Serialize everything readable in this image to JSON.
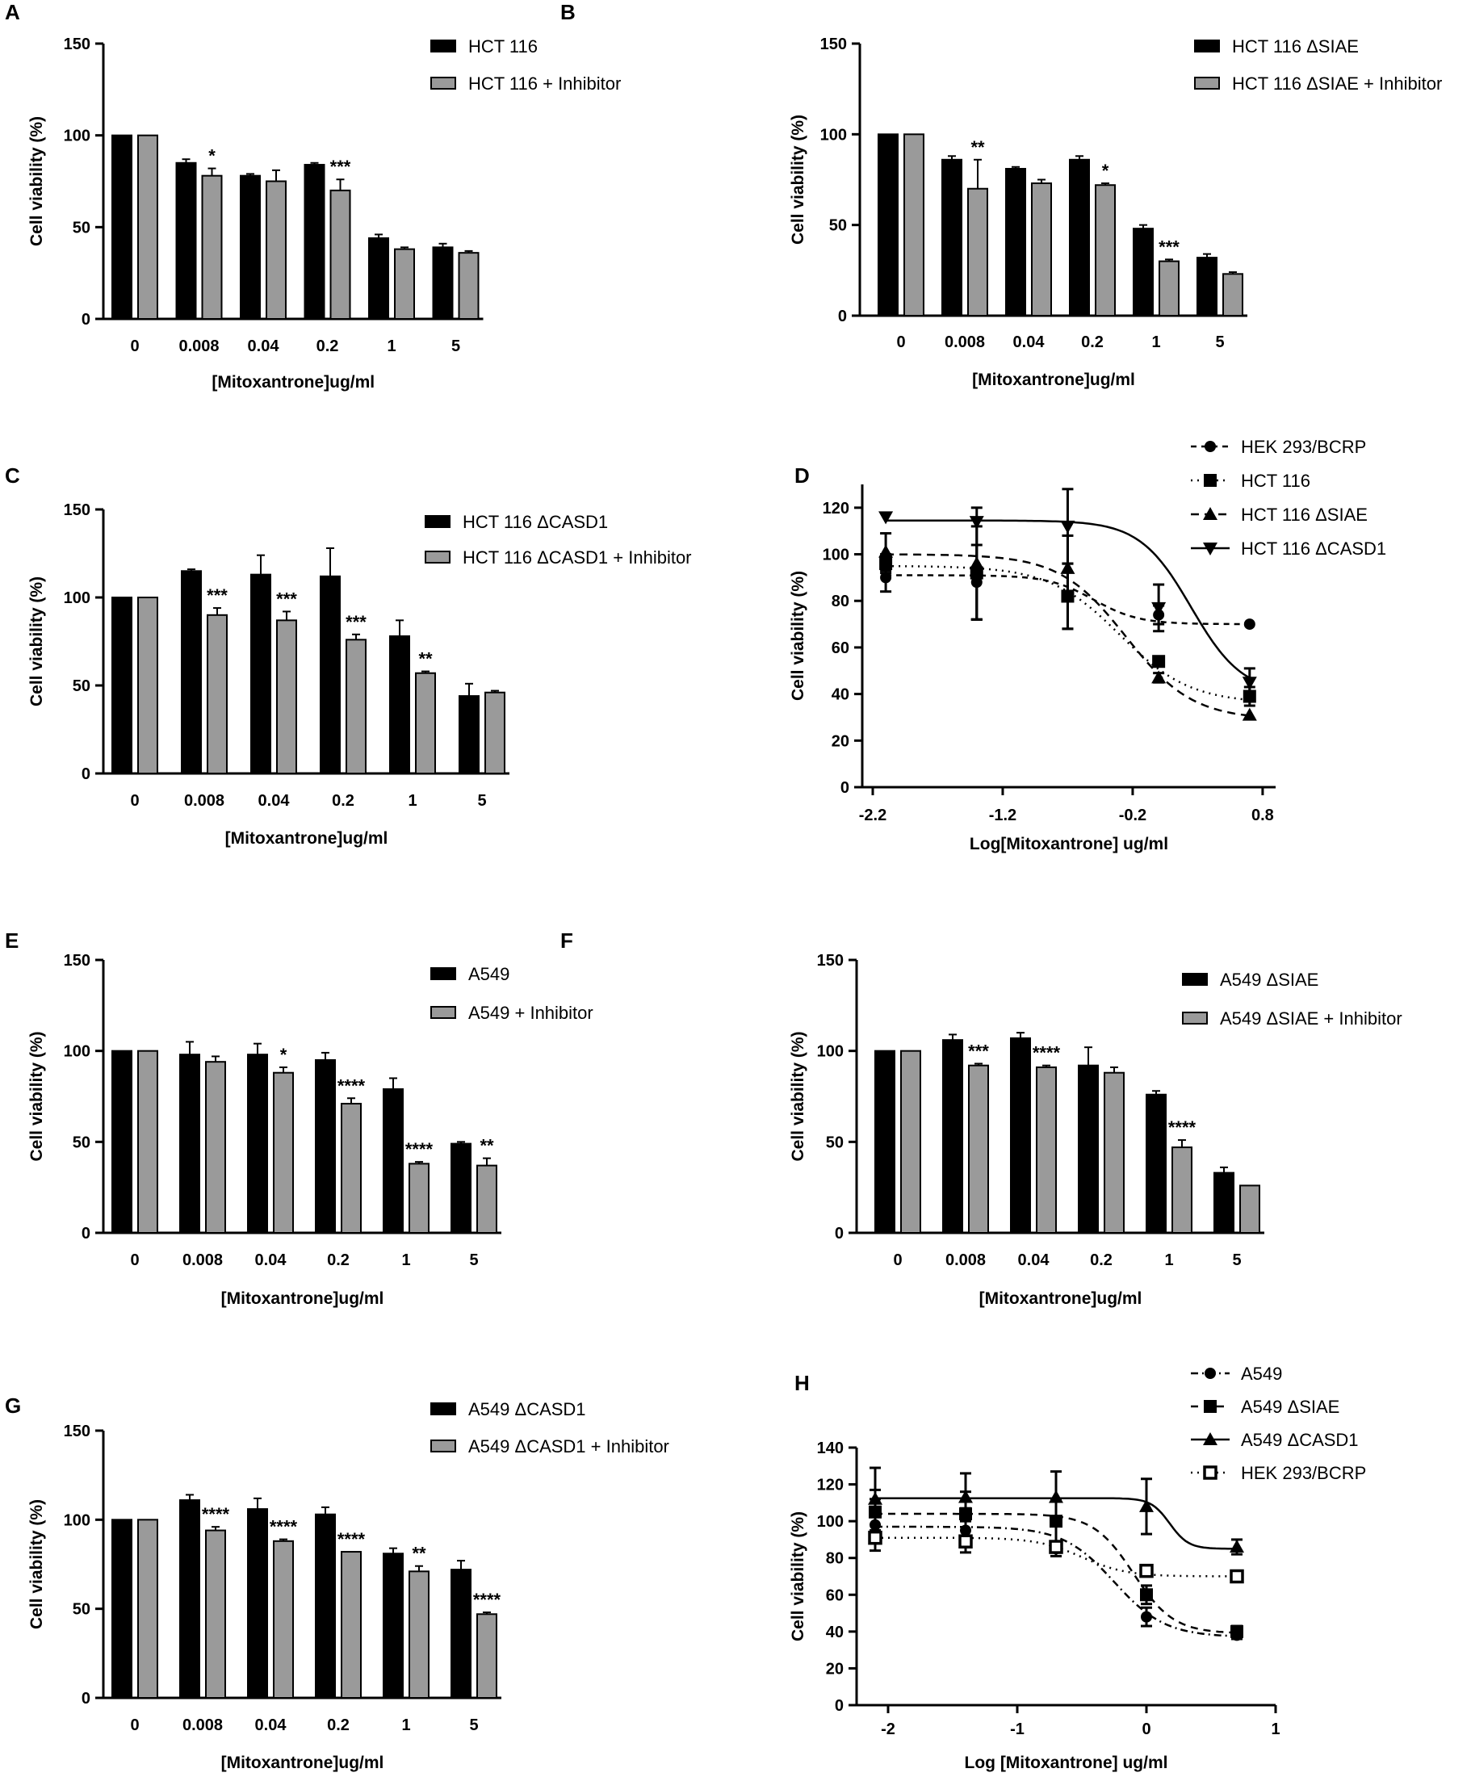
{
  "figure": {
    "background": "#ffffff"
  },
  "colors": {
    "black_bar": "#000000",
    "gray_bar": "#9a9a9a",
    "axis": "#000000"
  },
  "chart_data": [
    {
      "id": "A",
      "label": "A",
      "type": "bar",
      "categories": [
        "0",
        "0.008",
        "0.04",
        "0.2",
        "1",
        "5"
      ],
      "xlabel": "[Mitoxantrone]ug/ml",
      "ylabel": "Cell viability (%)",
      "ylim": [
        0,
        150
      ],
      "yticks": [
        0,
        50,
        100,
        150
      ],
      "series": [
        {
          "name": "HCT 116",
          "color": "#000000",
          "values": [
            100,
            85,
            78,
            84,
            44,
            39
          ],
          "errors": [
            0,
            2,
            1,
            1,
            2,
            2
          ]
        },
        {
          "name": "HCT 116 + Inhibitor",
          "color": "#9a9a9a",
          "values": [
            100,
            78,
            75,
            70,
            38,
            36
          ],
          "errors": [
            0,
            4,
            6,
            6,
            1,
            1
          ]
        }
      ],
      "significance": [
        "",
        "*",
        "",
        "***",
        "",
        ""
      ]
    },
    {
      "id": "B",
      "label": "B",
      "type": "bar",
      "categories": [
        "0",
        "0.008",
        "0.04",
        "0.2",
        "1",
        "5"
      ],
      "xlabel": "[Mitoxantrone]ug/ml",
      "ylabel": "Cell viability (%)",
      "ylim": [
        0,
        150
      ],
      "yticks": [
        0,
        50,
        100,
        150
      ],
      "series": [
        {
          "name": "HCT 116 ΔSIAE",
          "color": "#000000",
          "values": [
            100,
            86,
            81,
            86,
            48,
            32
          ],
          "errors": [
            0,
            2,
            1,
            2,
            2,
            2
          ]
        },
        {
          "name": "HCT 116 ΔSIAE + Inhibitor",
          "color": "#9a9a9a",
          "values": [
            100,
            70,
            73,
            72,
            30,
            23
          ],
          "errors": [
            0,
            16,
            2,
            1,
            1,
            1
          ]
        }
      ],
      "significance": [
        "",
        "**",
        "",
        "*",
        "***",
        ""
      ]
    },
    {
      "id": "C",
      "label": "C",
      "type": "bar",
      "categories": [
        "0",
        "0.008",
        "0.04",
        "0.2",
        "1",
        "5"
      ],
      "xlabel": "[Mitoxantrone]ug/ml",
      "ylabel": "Cell viability (%)",
      "ylim": [
        0,
        150
      ],
      "yticks": [
        0,
        50,
        100,
        150
      ],
      "series": [
        {
          "name": "HCT 116 ΔCASD1",
          "color": "#000000",
          "values": [
            100,
            115,
            113,
            112,
            78,
            44
          ],
          "errors": [
            0,
            1,
            11,
            16,
            9,
            7
          ]
        },
        {
          "name": "HCT 116 ΔCASD1 + Inhibitor",
          "color": "#9a9a9a",
          "values": [
            100,
            90,
            87,
            76,
            57,
            46
          ],
          "errors": [
            0,
            4,
            5,
            3,
            1,
            1
          ]
        }
      ],
      "significance": [
        "",
        "***",
        "***",
        "***",
        "**",
        ""
      ]
    },
    {
      "id": "D",
      "label": "D",
      "type": "line",
      "xlabel": "Log[Mitoxantrone] ug/ml",
      "ylabel": "Cell viability (%)",
      "xlim": [
        -2.2,
        0.9
      ],
      "ylim": [
        0,
        130
      ],
      "xticks": [
        "-2.2",
        "-1.2",
        "-0.2",
        "0.8"
      ],
      "xtick_values": [
        -2.2,
        -1.2,
        -0.2,
        0.8
      ],
      "yticks": [
        0,
        20,
        40,
        60,
        80,
        100,
        120
      ],
      "x": [
        -2.1,
        -1.4,
        -0.7,
        0.0,
        0.7
      ],
      "series": [
        {
          "name": "HEK 293/BCRP",
          "marker": "circle",
          "dash": "7,6",
          "values": [
            90,
            88,
            82,
            74,
            70
          ],
          "errors": [
            6,
            16,
            14,
            4,
            0
          ],
          "curve": {
            "top": 91,
            "bottom": 70,
            "logec50": -0.5,
            "hill": 2.5
          }
        },
        {
          "name": "HCT 116",
          "marker": "square",
          "dash": "2,6",
          "values": [
            96,
            92,
            82,
            54,
            39
          ],
          "errors": [
            4,
            20,
            14,
            2,
            4
          ],
          "curve": {
            "top": 95,
            "bottom": 36,
            "logec50": -0.3,
            "hill": 1.6
          }
        },
        {
          "name": "HCT 116 ΔSIAE",
          "marker": "triangle",
          "dash": "10,7",
          "values": [
            101,
            96,
            94,
            47,
            31
          ],
          "errors": [
            8,
            24,
            14,
            2,
            0
          ],
          "curve": {
            "top": 100,
            "bottom": 29,
            "logec50": -0.25,
            "hill": 1.7
          }
        },
        {
          "name": "HCT 116 ΔCASD1",
          "marker": "triangle-down",
          "dash": "",
          "values": [
            116,
            114,
            112,
            77,
            45
          ],
          "errors": [
            0,
            0,
            16,
            10,
            6
          ],
          "curve": {
            "top": 114.5,
            "bottom": 40,
            "logec50": 0.25,
            "hill": 2.2
          }
        }
      ]
    },
    {
      "id": "E",
      "label": "E",
      "type": "bar",
      "categories": [
        "0",
        "0.008",
        "0.04",
        "0.2",
        "1",
        "5"
      ],
      "xlabel": "[Mitoxantrone]ug/ml",
      "ylabel": "Cell viability (%)",
      "ylim": [
        0,
        150
      ],
      "yticks": [
        0,
        50,
        100,
        150
      ],
      "series": [
        {
          "name": "A549",
          "color": "#000000",
          "values": [
            100,
            98,
            98,
            95,
            79,
            49
          ],
          "errors": [
            0,
            7,
            6,
            4,
            6,
            1
          ]
        },
        {
          "name": "A549 + Inhibitor",
          "color": "#9a9a9a",
          "values": [
            100,
            94,
            88,
            71,
            38,
            37
          ],
          "errors": [
            0,
            3,
            3,
            3,
            1,
            4
          ]
        }
      ],
      "significance": [
        "",
        "",
        "*",
        "****",
        "****",
        "**"
      ]
    },
    {
      "id": "F",
      "label": "F",
      "type": "bar",
      "categories": [
        "0",
        "0.008",
        "0.04",
        "0.2",
        "1",
        "5"
      ],
      "xlabel": "[Mitoxantrone]ug/ml",
      "ylabel": "Cell viability (%)",
      "ylim": [
        0,
        150
      ],
      "yticks": [
        0,
        50,
        100,
        150
      ],
      "series": [
        {
          "name": "A549 ΔSIAE",
          "color": "#000000",
          "values": [
            100,
            106,
            107,
            92,
            76,
            33
          ],
          "errors": [
            0,
            3,
            3,
            10,
            2,
            3
          ]
        },
        {
          "name": "A549 ΔSIAE + Inhibitor",
          "color": "#9a9a9a",
          "values": [
            100,
            92,
            91,
            88,
            47,
            26
          ],
          "errors": [
            0,
            1,
            1,
            3,
            4,
            0
          ]
        }
      ],
      "significance": [
        "",
        "***",
        "****",
        "",
        "****",
        ""
      ]
    },
    {
      "id": "G",
      "label": "G",
      "type": "bar",
      "categories": [
        "0",
        "0.008",
        "0.04",
        "0.2",
        "1",
        "5"
      ],
      "xlabel": "[Mitoxantrone]ug/ml",
      "ylabel": "Cell viability (%)",
      "ylim": [
        0,
        150
      ],
      "yticks": [
        0,
        50,
        100,
        150
      ],
      "series": [
        {
          "name": "A549 ΔCASD1",
          "color": "#000000",
          "values": [
            100,
            111,
            106,
            103,
            81,
            72
          ],
          "errors": [
            0,
            3,
            6,
            4,
            3,
            5
          ]
        },
        {
          "name": "A549 ΔCASD1 + Inhibitor",
          "color": "#9a9a9a",
          "values": [
            100,
            94,
            88,
            82,
            71,
            47
          ],
          "errors": [
            0,
            2,
            1,
            0,
            3,
            1
          ]
        }
      ],
      "significance": [
        "",
        "****",
        "****",
        "****",
        "**",
        "****"
      ]
    },
    {
      "id": "H",
      "label": "H",
      "type": "line",
      "xlabel": "Log [Mitoxantrone] ug/ml",
      "ylabel": "Cell viability (%)",
      "xlim": [
        -2.2,
        1
      ],
      "ylim": [
        0,
        140
      ],
      "xticks": [
        "-2",
        "-1",
        "0",
        "1"
      ],
      "xtick_values": [
        -2,
        -1,
        0,
        1
      ],
      "yticks": [
        0,
        20,
        40,
        60,
        80,
        100,
        120,
        140
      ],
      "x": [
        -2.1,
        -1.4,
        -0.7,
        0.0,
        0.7
      ],
      "series": [
        {
          "name": "A549",
          "marker": "circle",
          "dash": "9,5,2,5",
          "values": [
            98,
            95,
            85,
            48,
            38
          ],
          "errors": [
            14,
            12,
            4,
            5,
            2
          ],
          "curve": {
            "top": 97,
            "bottom": 37,
            "logec50": -0.25,
            "hill": 2.2
          }
        },
        {
          "name": "A549 ΔSIAE",
          "marker": "square",
          "dash": "9,7",
          "values": [
            105,
            104,
            100,
            60,
            40
          ],
          "errors": [
            12,
            12,
            12,
            5,
            3
          ],
          "curve": {
            "top": 104,
            "bottom": 39,
            "logec50": -0.1,
            "hill": 2.8
          }
        },
        {
          "name": "A549 ΔCASD1",
          "marker": "triangle",
          "dash": "",
          "values": [
            112,
            113,
            113,
            108,
            86
          ],
          "errors": [
            17,
            13,
            14,
            15,
            4
          ],
          "curve": {
            "top": 112.5,
            "bottom": 85,
            "logec50": 0.18,
            "hill": 6
          }
        },
        {
          "name": "HEK 293/BCRP",
          "marker": "square-open",
          "dash": "2,6",
          "values": [
            91,
            89,
            86,
            73,
            70
          ],
          "errors": [
            0,
            0,
            0,
            0,
            0
          ],
          "curve": {
            "top": 91,
            "bottom": 70,
            "logec50": -0.5,
            "hill": 2.5
          }
        }
      ]
    }
  ]
}
